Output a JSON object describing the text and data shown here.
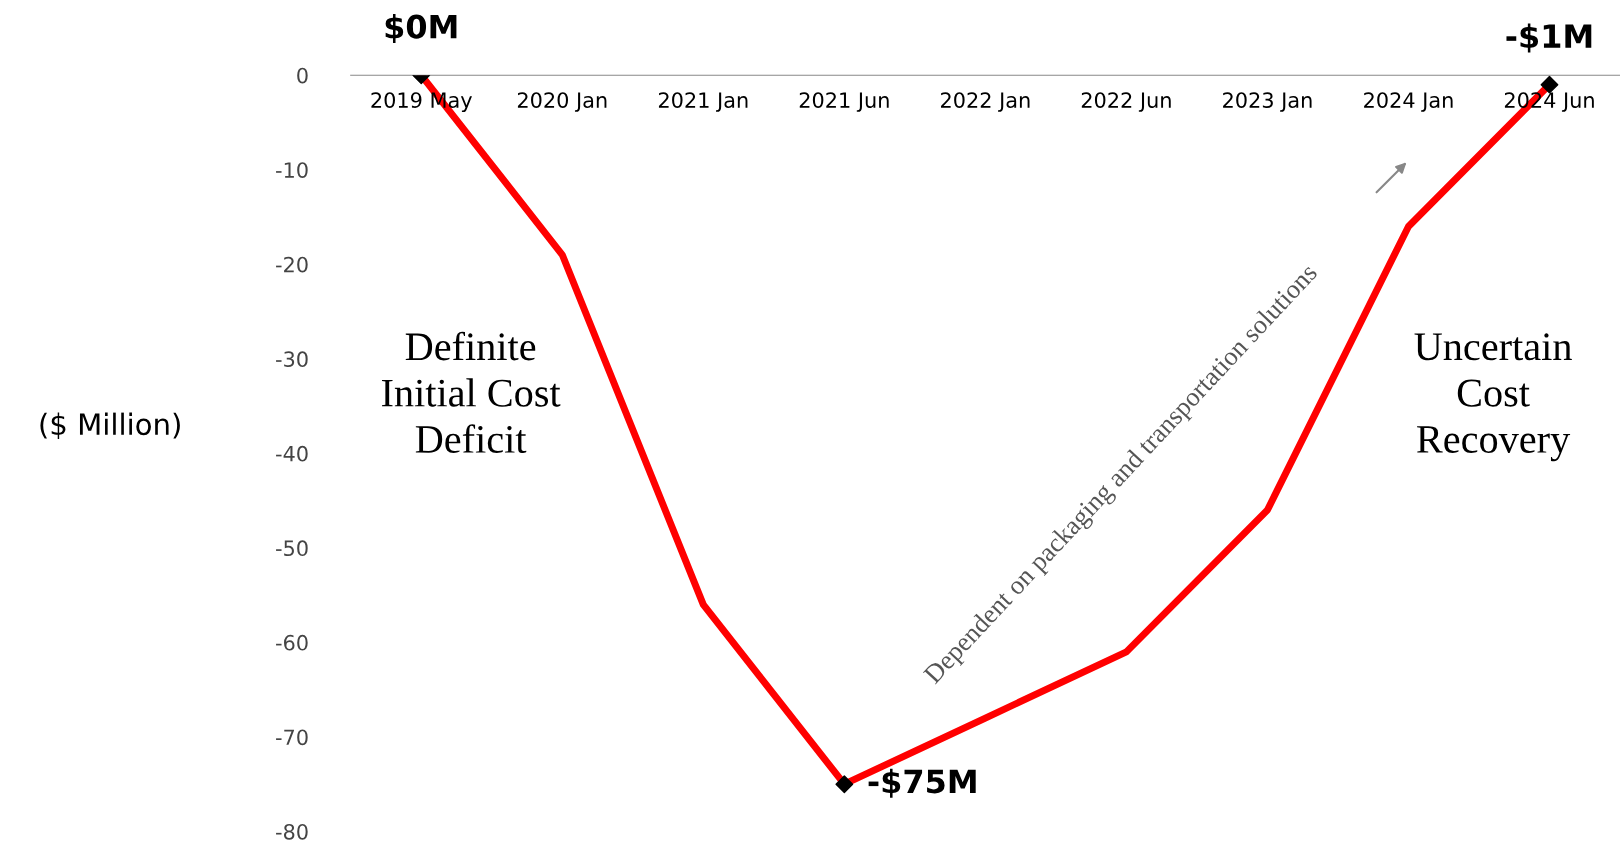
{
  "chart_data": {
    "type": "line",
    "ylabel": "($ Million)",
    "categories": [
      "2019 May",
      "2020 Jan",
      "2021 Jan",
      "2021 Jun",
      "2022 Jan",
      "2022 Jun",
      "2023 Jan",
      "2024 Jan",
      "2024 Jun"
    ],
    "series": [
      {
        "color": "#ff0000",
        "values": [
          0,
          -19,
          -56,
          -75,
          -68,
          -61,
          -46,
          -16,
          -1
        ],
        "marker": "none"
      },
      {
        "type": "scatter",
        "color": "#000000",
        "values": [
          0,
          null,
          null,
          -75,
          null,
          null,
          null,
          null,
          -1
        ],
        "marker": "diamond",
        "value_labels": [
          "$0M",
          null,
          null,
          "-$75M",
          null,
          null,
          null,
          null,
          "-$1M"
        ]
      }
    ],
    "ylim": [
      -80,
      0
    ],
    "yticks": [
      0,
      -10,
      -20,
      -30,
      -40,
      -50,
      -60,
      -70,
      -80
    ],
    "grid": false,
    "legend": false,
    "annotations": [
      "Definite\nInitial Cost\nDeficit",
      "Uncertain\nCost\nRecovery",
      "Dependent on packaging and transportation solutions"
    ]
  }
}
